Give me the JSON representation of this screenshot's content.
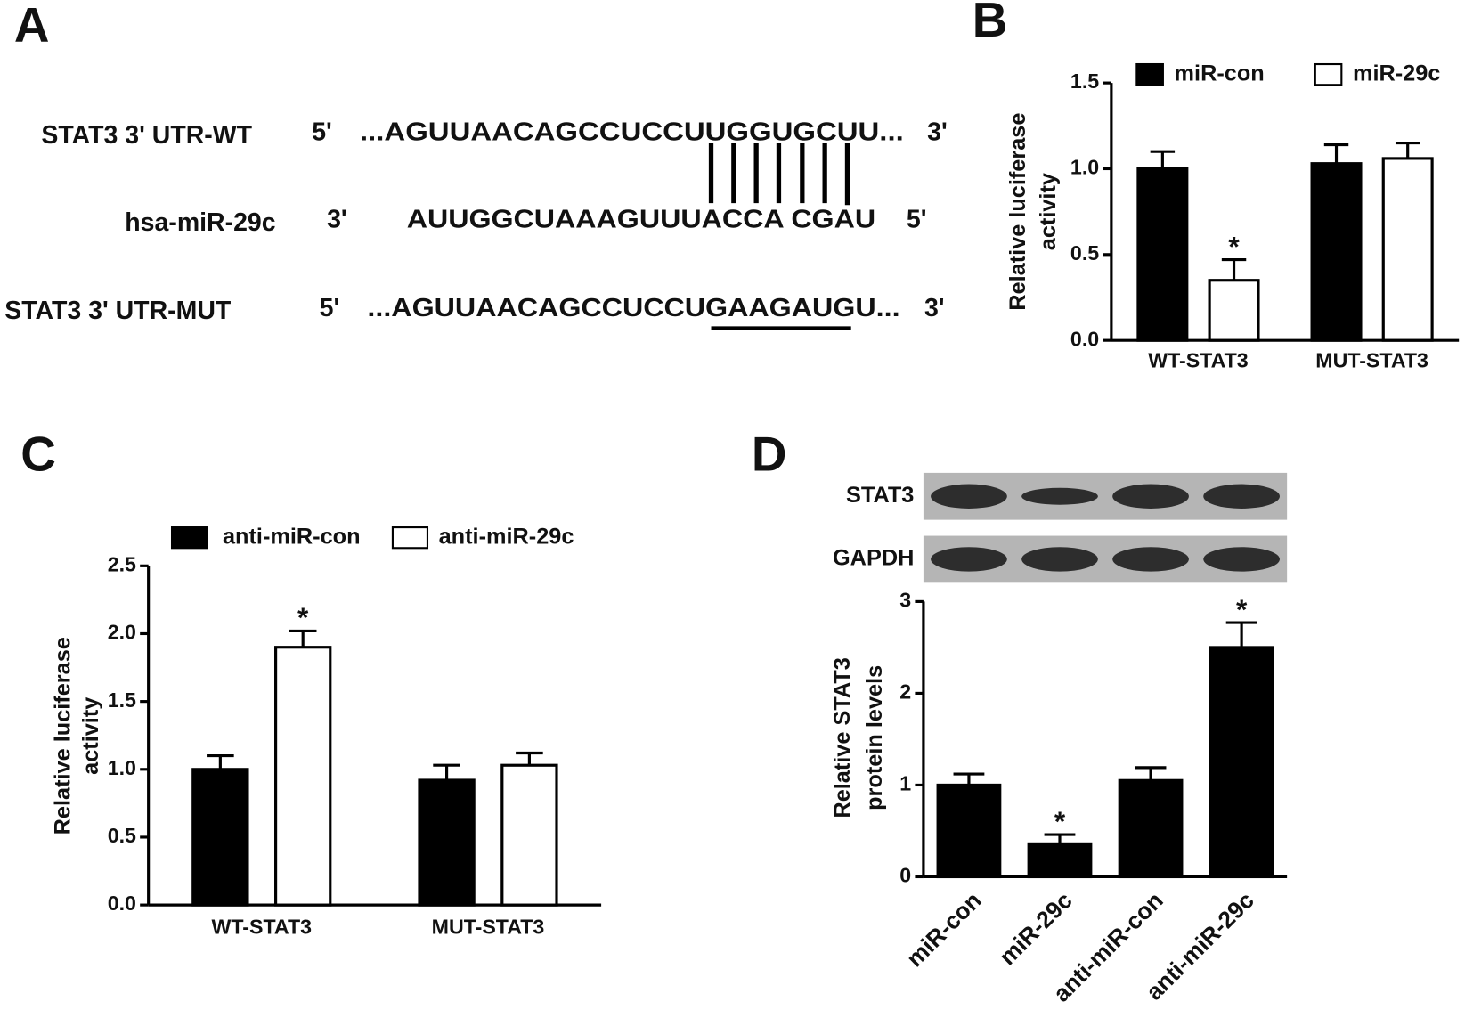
{
  "panel_a": {
    "label": "A",
    "rows": [
      {
        "name": "STAT3 3' UTR-WT",
        "left": "5'",
        "sequence": "...AGUUAACAGCCUCCUUGGUGCUU...",
        "right": "3'"
      },
      {
        "name": "hsa-miR-29c",
        "left": "3'",
        "sequence": "AUUGGCUAAAGUUUACCA CGAU",
        "right": "5'"
      },
      {
        "name": "STAT3 3' UTR-MUT",
        "left": "5'",
        "sequence": "...AGUUAACAGCCUCCUGAAGAUGU...",
        "right": "3'"
      }
    ]
  },
  "chart_data": [
    {
      "type": "bar",
      "label": "B",
      "ylabel": [
        "Relative luciferase",
        "activity"
      ],
      "categories": [
        "WT-STAT3",
        "MUT-STAT3"
      ],
      "series": [
        {
          "name": "miR-con",
          "color": "#000000",
          "values": [
            1.0,
            1.03
          ],
          "errors": [
            0.1,
            0.11
          ],
          "significance": [
            null,
            null
          ]
        },
        {
          "name": "miR-29c",
          "color": "#ffffff",
          "values": [
            0.35,
            1.06
          ],
          "errors": [
            0.12,
            0.09
          ],
          "significance": [
            "*",
            null
          ]
        }
      ],
      "ylim": [
        0,
        1.5
      ],
      "yticks": [
        {
          "value": 0,
          "label": "0.0"
        },
        0.5,
        {
          "value": 1,
          "label": "1.0"
        },
        1.5
      ]
    },
    {
      "type": "bar",
      "label": "C",
      "ylabel": [
        "Relative luciferase",
        "activity"
      ],
      "categories": [
        "WT-STAT3",
        "MUT-STAT3"
      ],
      "series": [
        {
          "name": "anti-miR-con",
          "color": "#000000",
          "values": [
            1.0,
            0.92
          ],
          "errors": [
            0.1,
            0.11
          ],
          "significance": [
            null,
            null
          ]
        },
        {
          "name": "anti-miR-29c",
          "color": "#ffffff",
          "values": [
            1.9,
            1.03
          ],
          "errors": [
            0.12,
            0.09
          ],
          "significance": [
            "*",
            null
          ]
        }
      ],
      "ylim": [
        0,
        2.5
      ],
      "yticks": [
        {
          "value": 0,
          "label": "0.0"
        },
        0.5,
        {
          "value": 1,
          "label": "1.0"
        },
        1.5,
        {
          "value": 2,
          "label": "2.0"
        },
        2.5
      ]
    },
    {
      "type": "bar",
      "label": "D",
      "ylabel": [
        "Relative STAT3",
        "protein levels"
      ],
      "blot_labels": [
        "STAT3",
        "GAPDH"
      ],
      "categories": [
        "miR-con",
        "miR-29c",
        "anti-miR-con",
        "anti-miR-29c"
      ],
      "color": "#000000",
      "values": [
        1.0,
        0.36,
        1.05,
        2.5
      ],
      "errors": [
        0.12,
        0.1,
        0.14,
        0.27
      ],
      "significance": [
        null,
        "*",
        null,
        "*"
      ],
      "ylim": [
        0,
        3
      ],
      "yticks": [
        0,
        1,
        2,
        3
      ]
    }
  ]
}
